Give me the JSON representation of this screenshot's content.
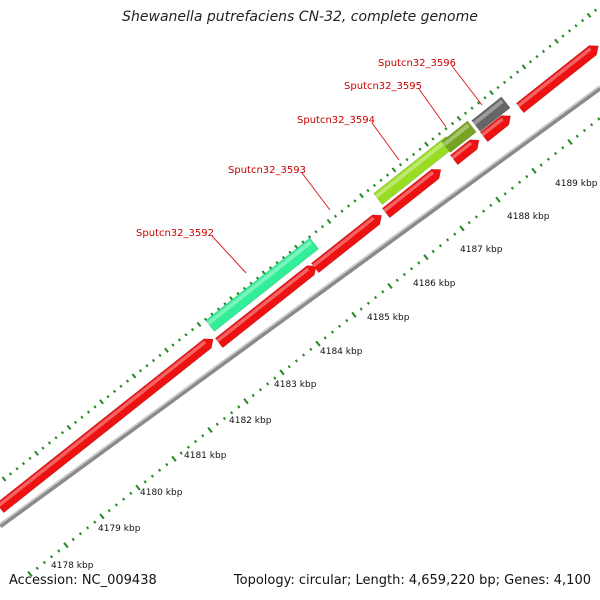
{
  "title": "Shewanella putrefaciens CN-32, complete genome",
  "footer": {
    "accession": "Accession: NC_009438",
    "stats": "Topology: circular; Length: 4,659,220 bp; Genes: 4,100"
  },
  "scale_labels": [
    "4178 kbp",
    "4179 kbp",
    "4180 kbp",
    "4181 kbp",
    "4182 kbp",
    "4183 kbp",
    "4184 kbp",
    "4185 kbp",
    "4186 kbp",
    "4187 kbp",
    "4188 kbp",
    "4189 kbp"
  ],
  "colors": {
    "forward_cds": "#ee1111",
    "backbone": "#999999",
    "ticks": "#228822",
    "gene_label": "#cc0000",
    "gene_3592": "#33ee99",
    "gene_3594": "#99dd22",
    "gene_3595": "#77a322",
    "gene_3596": "#666666"
  },
  "genes": [
    {
      "id": "Sputcn32_3592",
      "label": "Sputcn32_3592",
      "color": "#33ee99"
    },
    {
      "id": "Sputcn32_3593",
      "label": "Sputcn32_3593",
      "color": "#ee1111"
    },
    {
      "id": "Sputcn32_3594",
      "label": "Sputcn32_3594",
      "color": "#99dd22"
    },
    {
      "id": "Sputcn32_3595",
      "label": "Sputcn32_3595",
      "color": "#77a322"
    },
    {
      "id": "Sputcn32_3596",
      "label": "Sputcn32_3596",
      "color": "#666666"
    }
  ]
}
